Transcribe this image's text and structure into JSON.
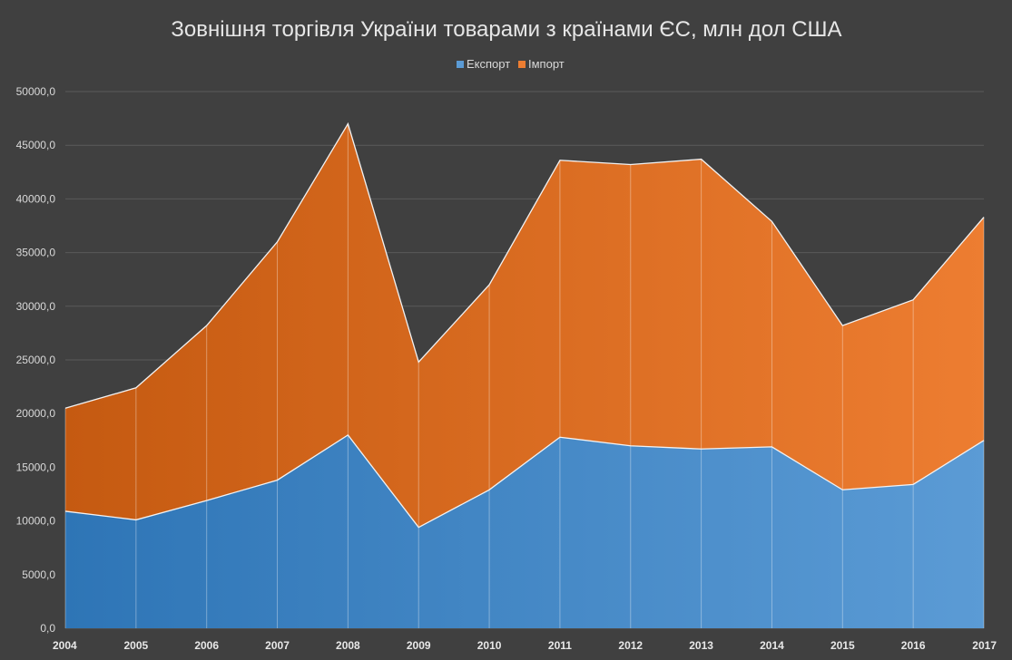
{
  "chart_data": {
    "type": "area",
    "stacked": true,
    "title": "Зовнішня торгівля України товарами з країнами ЄС, млн дол США",
    "xlabel": "",
    "ylabel": "",
    "categories": [
      "2004",
      "2005",
      "2006",
      "2007",
      "2008",
      "2009",
      "2010",
      "2011",
      "2012",
      "2013",
      "2014",
      "2015",
      "2016",
      "2017"
    ],
    "series": [
      {
        "name": "Експорт",
        "color": "#5b9bd5",
        "color_dark": "#2e75b6",
        "values": [
          10900,
          10100,
          11900,
          13800,
          18000,
          9400,
          12900,
          17800,
          17000,
          16700,
          16900,
          12900,
          13400,
          17500
        ]
      },
      {
        "name": "Імпорт",
        "color": "#ed7d31",
        "color_dark": "#c55a11",
        "values": [
          9600,
          12300,
          16300,
          22200,
          29000,
          15400,
          19100,
          25800,
          26200,
          27000,
          21000,
          15300,
          17200,
          20800
        ]
      }
    ],
    "ylim": [
      0,
      50000
    ],
    "yticks": [
      "0,0",
      "5000,0",
      "10000,0",
      "15000,0",
      "20000,0",
      "25000,0",
      "30000,0",
      "35000,0",
      "40000,0",
      "45000,0",
      "50000,0"
    ],
    "grid": true,
    "legend_position": "top-center"
  }
}
